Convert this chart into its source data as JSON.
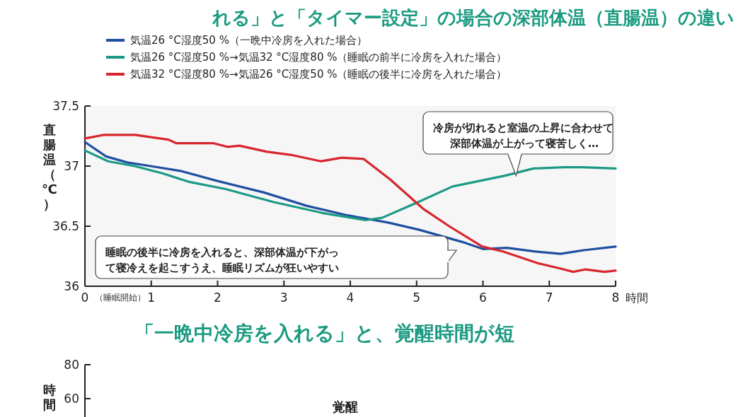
{
  "chart_data": [
    {
      "type": "line",
      "title": "れる」と「タイマー設定」の場合の深部体温（直腸温）の違い",
      "xlabel": "時間",
      "ylabel": "直腸温（℃）",
      "xlim": [
        0,
        8
      ],
      "ylim": [
        36,
        37.5
      ],
      "xticks": [
        0,
        1,
        2,
        3,
        4,
        5,
        6,
        7,
        8
      ],
      "yticks": [
        36,
        36.5,
        37,
        37.5
      ],
      "legend": "top left",
      "grid": false,
      "marker": "none",
      "line_style": "solid",
      "series": [
        {
          "name": "気温26 °C湿度50 %（一晩中冷房を入れた場合）",
          "color": "#1f4fa0",
          "x": [
            0,
            0.32,
            0.64,
            0.99,
            1.44,
            1.97,
            2.7,
            3.34,
            3.96,
            4.57,
            5.04,
            5.68,
            6.0,
            6.36,
            6.77,
            7.17,
            7.52,
            8.0
          ],
          "values": [
            37.2,
            37.08,
            37.03,
            37.0,
            36.96,
            36.88,
            36.78,
            36.67,
            36.59,
            36.53,
            36.47,
            36.37,
            36.31,
            36.32,
            36.29,
            36.27,
            36.3,
            36.33
          ]
        },
        {
          "name": "気温26 °C湿度50 %→気温32 °C湿度80 %（睡眠の前半に冷房を入れた場合）",
          "color": "#1a9a84",
          "x": [
            0,
            0.35,
            0.75,
            1.17,
            1.56,
            2.11,
            2.85,
            3.58,
            4.23,
            4.48,
            4.98,
            5.54,
            5.89,
            6.33,
            6.76,
            7.22,
            7.5,
            8.0
          ],
          "values": [
            37.13,
            37.04,
            37.0,
            36.94,
            36.87,
            36.81,
            36.7,
            36.61,
            36.55,
            36.57,
            36.69,
            36.83,
            36.87,
            36.92,
            36.98,
            36.99,
            36.99,
            36.98
          ]
        },
        {
          "name": "気温32 °C湿度80 %→気温26 °C湿度50 %（睡眠の後半に冷房を入れた場合）",
          "color": "#d7262e",
          "x": [
            0,
            0.29,
            0.76,
            1.26,
            1.38,
            1.94,
            2.15,
            2.33,
            2.74,
            3.14,
            3.56,
            3.87,
            4.2,
            4.6,
            5.11,
            5.49,
            5.99,
            6.3,
            6.84,
            7.15,
            7.36,
            7.54,
            7.83,
            8.0
          ],
          "values": [
            37.23,
            37.26,
            37.26,
            37.22,
            37.19,
            37.19,
            37.16,
            37.17,
            37.12,
            37.09,
            37.04,
            37.07,
            37.06,
            36.89,
            36.64,
            36.5,
            36.33,
            36.29,
            36.19,
            36.15,
            36.12,
            36.14,
            36.12,
            36.13
          ]
        }
      ],
      "annotations": [
        {
          "text": "冷房が切れると室温の上昇に合わせて深部体温が上がって寝苦しく…",
          "x": 6.5,
          "y": 36.92
        },
        "睡眠の後半に冷房を入れると、深部体温が下がって寝冷えを起こすうえ、睡眠リズムが狂いやすい",
        "（睡眠開始）"
      ]
    },
    {
      "type": "other",
      "title": "「一晩中冷房を入れる」と、覚醒時間が短",
      "ylabel": "時間",
      "annotations": [
        "80",
        "60",
        "覚醒"
      ]
    }
  ]
}
